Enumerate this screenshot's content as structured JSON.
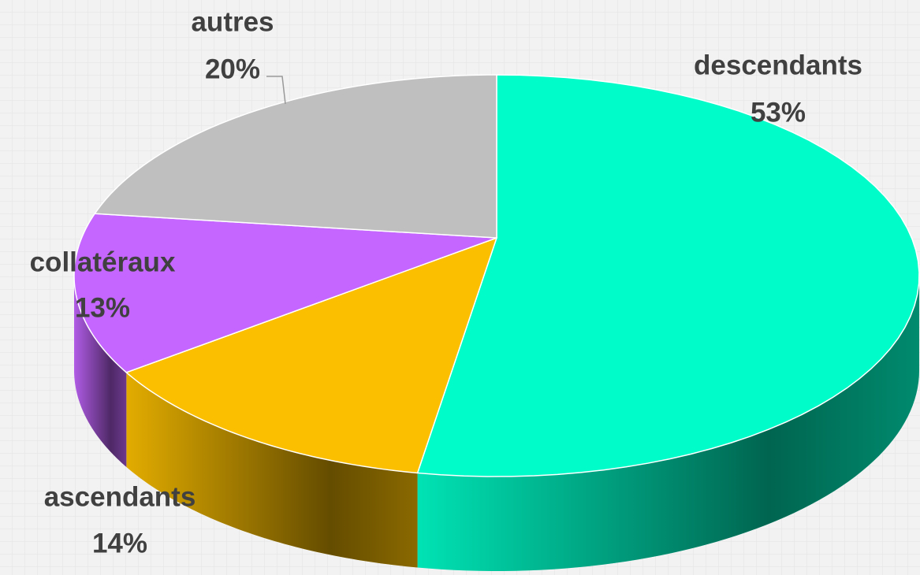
{
  "chart_data": {
    "type": "pie",
    "categories": [
      "descendants",
      "ascendants",
      "collatéraux",
      "autres"
    ],
    "values": [
      53,
      14,
      13,
      20
    ],
    "value_labels": [
      "53%",
      "14%",
      "13%",
      "20%"
    ],
    "colors": [
      "#00fcc8",
      "#fbbf00",
      "#c466ff",
      "#bfbfbf"
    ]
  }
}
